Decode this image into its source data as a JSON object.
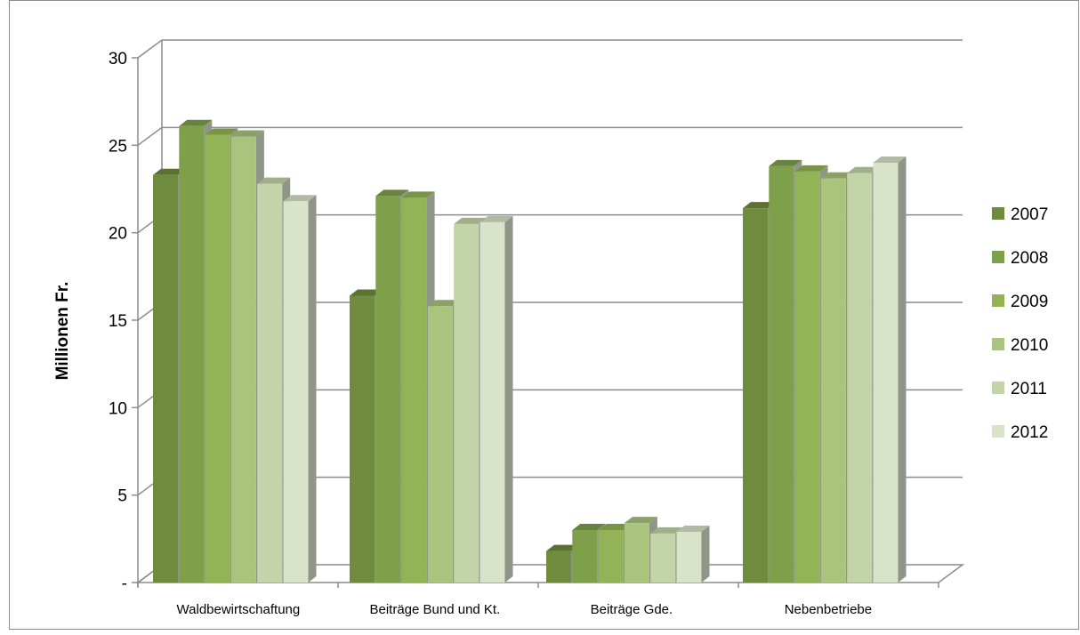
{
  "colors": {
    "series": [
      "#6f8b3e",
      "#7fa04a",
      "#93b357",
      "#a9c47d",
      "#c3d4a8",
      "#d9e3c9"
    ],
    "grid": "#8c8c8c",
    "frame": "#8c8c8c",
    "wall_side": "#8f9688"
  },
  "chart_data": {
    "type": "bar",
    "title": "",
    "xlabel": "",
    "ylabel": "Millionen Fr.",
    "ylim": [
      0,
      30
    ],
    "yticks": [
      {
        "value": 0,
        "label": "-"
      },
      {
        "value": 5,
        "label": "5"
      },
      {
        "value": 10,
        "label": "10"
      },
      {
        "value": 15,
        "label": "15"
      },
      {
        "value": 20,
        "label": "20"
      },
      {
        "value": 25,
        "label": "25"
      },
      {
        "value": 30,
        "label": "30"
      }
    ],
    "grid": true,
    "legend_position": "right",
    "categories": [
      "Waldbewirtschaftung",
      "Beiträge Bund und Kt.",
      "Beiträge Gde.",
      "Nebenbetriebe"
    ],
    "series": [
      {
        "name": "2007",
        "values": [
          23.3,
          16.4,
          1.8,
          21.4
        ]
      },
      {
        "name": "2008",
        "values": [
          26.1,
          22.1,
          3.0,
          23.8
        ]
      },
      {
        "name": "2009",
        "values": [
          25.6,
          22.0,
          3.0,
          23.5
        ]
      },
      {
        "name": "2010",
        "values": [
          25.5,
          15.8,
          3.4,
          23.1
        ]
      },
      {
        "name": "2011",
        "values": [
          22.8,
          20.5,
          2.8,
          23.4
        ]
      },
      {
        "name": "2012",
        "values": [
          21.8,
          20.6,
          2.9,
          24.0
        ]
      }
    ]
  }
}
